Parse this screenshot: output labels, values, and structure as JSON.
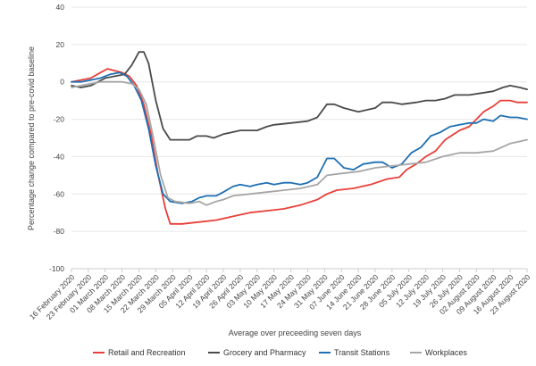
{
  "chart_data": {
    "type": "line",
    "xlabel": "Average over preceeding seven days",
    "ylabel": "Percentage change compared to pre-covid baseline",
    "ylim": [
      -100,
      40
    ],
    "yticks": [
      40,
      20,
      0,
      -20,
      -40,
      -60,
      -80,
      -100
    ],
    "grid": "horizontal",
    "legend_position": "bottom",
    "x_tick_labels": [
      "16 February 2020",
      "23 February 2020",
      "01 March 2020",
      "08 March 2020",
      "15 March 2020",
      "22 March 2020",
      "29 March 2020",
      "05 April 2020",
      "12 April 2020",
      "19 April 2020",
      "26 April 2020",
      "03 May 2020",
      "10 May 2020",
      "17 May 2020",
      "24 May 2020",
      "31 May 2020",
      "07 June 2020",
      "14 June 2020",
      "21 June 2020",
      "28 June 2020",
      "05 July 2020",
      "12 July 2020",
      "19 July 2020",
      "26 July 2020",
      "02 August 2020",
      "09 August 2020",
      "16 August 2020",
      "23 August 2020"
    ],
    "x_start": "2020-02-16",
    "x_end": "2020-08-23",
    "series": [
      {
        "name": "Retail and Recreation",
        "color": "#e8403a",
        "points": [
          [
            "2020-02-16",
            0
          ],
          [
            "2020-02-20",
            1
          ],
          [
            "2020-02-24",
            2
          ],
          [
            "2020-02-28",
            5
          ],
          [
            "2020-03-02",
            7
          ],
          [
            "2020-03-05",
            6
          ],
          [
            "2020-03-08",
            5
          ],
          [
            "2020-03-11",
            3
          ],
          [
            "2020-03-14",
            -2
          ],
          [
            "2020-03-17",
            -12
          ],
          [
            "2020-03-20",
            -28
          ],
          [
            "2020-03-23",
            -50
          ],
          [
            "2020-03-26",
            -68
          ],
          [
            "2020-03-28",
            -76
          ],
          [
            "2020-04-02",
            -76
          ],
          [
            "2020-04-09",
            -75
          ],
          [
            "2020-04-16",
            -74
          ],
          [
            "2020-04-23",
            -72
          ],
          [
            "2020-04-30",
            -70
          ],
          [
            "2020-05-07",
            -69
          ],
          [
            "2020-05-14",
            -68
          ],
          [
            "2020-05-21",
            -66
          ],
          [
            "2020-05-28",
            -63
          ],
          [
            "2020-06-01",
            -60
          ],
          [
            "2020-06-05",
            -58
          ],
          [
            "2020-06-12",
            -57
          ],
          [
            "2020-06-19",
            -55
          ],
          [
            "2020-06-26",
            -52
          ],
          [
            "2020-07-01",
            -51
          ],
          [
            "2020-07-04",
            -47
          ],
          [
            "2020-07-08",
            -44
          ],
          [
            "2020-07-12",
            -40
          ],
          [
            "2020-07-16",
            -37
          ],
          [
            "2020-07-20",
            -31
          ],
          [
            "2020-07-26",
            -26
          ],
          [
            "2020-07-30",
            -24
          ],
          [
            "2020-08-02",
            -20
          ],
          [
            "2020-08-05",
            -16
          ],
          [
            "2020-08-09",
            -13
          ],
          [
            "2020-08-12",
            -10
          ],
          [
            "2020-08-16",
            -10
          ],
          [
            "2020-08-19",
            -11
          ],
          [
            "2020-08-23",
            -11
          ]
        ]
      },
      {
        "name": "Grocery and Pharmacy",
        "color": "#4a4a4a",
        "points": [
          [
            "2020-02-16",
            -2
          ],
          [
            "2020-02-20",
            -3
          ],
          [
            "2020-02-24",
            -2
          ],
          [
            "2020-03-01",
            2
          ],
          [
            "2020-03-05",
            3
          ],
          [
            "2020-03-09",
            4
          ],
          [
            "2020-03-12",
            9
          ],
          [
            "2020-03-15",
            16
          ],
          [
            "2020-03-17",
            16
          ],
          [
            "2020-03-19",
            10
          ],
          [
            "2020-03-22",
            -10
          ],
          [
            "2020-03-25",
            -25
          ],
          [
            "2020-03-28",
            -31
          ],
          [
            "2020-04-01",
            -31
          ],
          [
            "2020-04-05",
            -31
          ],
          [
            "2020-04-08",
            -29
          ],
          [
            "2020-04-12",
            -29
          ],
          [
            "2020-04-15",
            -30
          ],
          [
            "2020-04-19",
            -28
          ],
          [
            "2020-04-26",
            -26
          ],
          [
            "2020-05-03",
            -26
          ],
          [
            "2020-05-07",
            -24
          ],
          [
            "2020-05-10",
            -23
          ],
          [
            "2020-05-17",
            -22
          ],
          [
            "2020-05-24",
            -21
          ],
          [
            "2020-05-28",
            -19
          ],
          [
            "2020-06-01",
            -12
          ],
          [
            "2020-06-04",
            -12
          ],
          [
            "2020-06-08",
            -14
          ],
          [
            "2020-06-14",
            -16
          ],
          [
            "2020-06-21",
            -14
          ],
          [
            "2020-06-24",
            -11
          ],
          [
            "2020-06-28",
            -11
          ],
          [
            "2020-07-02",
            -12
          ],
          [
            "2020-07-08",
            -11
          ],
          [
            "2020-07-12",
            -10
          ],
          [
            "2020-07-16",
            -10
          ],
          [
            "2020-07-20",
            -9
          ],
          [
            "2020-07-24",
            -7
          ],
          [
            "2020-07-30",
            -7
          ],
          [
            "2020-08-04",
            -6
          ],
          [
            "2020-08-09",
            -5
          ],
          [
            "2020-08-13",
            -3
          ],
          [
            "2020-08-16",
            -2
          ],
          [
            "2020-08-20",
            -3
          ],
          [
            "2020-08-23",
            -4
          ]
        ]
      },
      {
        "name": "Transit Stations",
        "color": "#1f6fb2",
        "points": [
          [
            "2020-02-16",
            0
          ],
          [
            "2020-02-20",
            0
          ],
          [
            "2020-02-24",
            1
          ],
          [
            "2020-02-28",
            2
          ],
          [
            "2020-03-03",
            4
          ],
          [
            "2020-03-07",
            5
          ],
          [
            "2020-03-10",
            3
          ],
          [
            "2020-03-13",
            -2
          ],
          [
            "2020-03-16",
            -10
          ],
          [
            "2020-03-19",
            -25
          ],
          [
            "2020-03-22",
            -45
          ],
          [
            "2020-03-25",
            -60
          ],
          [
            "2020-03-28",
            -64
          ],
          [
            "2020-04-02",
            -65
          ],
          [
            "2020-04-06",
            -64
          ],
          [
            "2020-04-09",
            -62
          ],
          [
            "2020-04-12",
            -61
          ],
          [
            "2020-04-16",
            -61
          ],
          [
            "2020-04-19",
            -59
          ],
          [
            "2020-04-23",
            -56
          ],
          [
            "2020-04-26",
            -55
          ],
          [
            "2020-04-30",
            -56
          ],
          [
            "2020-05-03",
            -55
          ],
          [
            "2020-05-07",
            -54
          ],
          [
            "2020-05-10",
            -55
          ],
          [
            "2020-05-14",
            -54
          ],
          [
            "2020-05-17",
            -54
          ],
          [
            "2020-05-21",
            -55
          ],
          [
            "2020-05-24",
            -54
          ],
          [
            "2020-05-28",
            -51
          ],
          [
            "2020-06-01",
            -41
          ],
          [
            "2020-06-04",
            -41
          ],
          [
            "2020-06-08",
            -46
          ],
          [
            "2020-06-12",
            -47
          ],
          [
            "2020-06-16",
            -44
          ],
          [
            "2020-06-21",
            -43
          ],
          [
            "2020-06-24",
            -43
          ],
          [
            "2020-06-28",
            -46
          ],
          [
            "2020-07-02",
            -44
          ],
          [
            "2020-07-06",
            -38
          ],
          [
            "2020-07-10",
            -35
          ],
          [
            "2020-07-14",
            -29
          ],
          [
            "2020-07-18",
            -27
          ],
          [
            "2020-07-22",
            -24
          ],
          [
            "2020-07-26",
            -23
          ],
          [
            "2020-07-30",
            -22
          ],
          [
            "2020-08-02",
            -22
          ],
          [
            "2020-08-05",
            -20
          ],
          [
            "2020-08-09",
            -21
          ],
          [
            "2020-08-12",
            -18
          ],
          [
            "2020-08-16",
            -19
          ],
          [
            "2020-08-19",
            -19
          ],
          [
            "2020-08-23",
            -20
          ]
        ]
      },
      {
        "name": "Workplaces",
        "color": "#a6a6a6",
        "points": [
          [
            "2020-02-16",
            -3
          ],
          [
            "2020-02-20",
            -2
          ],
          [
            "2020-02-24",
            -1
          ],
          [
            "2020-02-28",
            0
          ],
          [
            "2020-03-03",
            0
          ],
          [
            "2020-03-08",
            0
          ],
          [
            "2020-03-12",
            -1
          ],
          [
            "2020-03-15",
            -4
          ],
          [
            "2020-03-18",
            -12
          ],
          [
            "2020-03-21",
            -30
          ],
          [
            "2020-03-24",
            -50
          ],
          [
            "2020-03-27",
            -62
          ],
          [
            "2020-03-30",
            -64
          ],
          [
            "2020-04-05",
            -65
          ],
          [
            "2020-04-09",
            -64
          ],
          [
            "2020-04-12",
            -66
          ],
          [
            "2020-04-16",
            -64
          ],
          [
            "2020-04-19",
            -63
          ],
          [
            "2020-04-23",
            -61
          ],
          [
            "2020-04-30",
            -60
          ],
          [
            "2020-05-07",
            -59
          ],
          [
            "2020-05-14",
            -58
          ],
          [
            "2020-05-21",
            -57
          ],
          [
            "2020-05-28",
            -55
          ],
          [
            "2020-06-01",
            -50
          ],
          [
            "2020-06-07",
            -49
          ],
          [
            "2020-06-14",
            -48
          ],
          [
            "2020-06-21",
            -46
          ],
          [
            "2020-06-28",
            -45
          ],
          [
            "2020-07-05",
            -44
          ],
          [
            "2020-07-12",
            -43
          ],
          [
            "2020-07-19",
            -40
          ],
          [
            "2020-07-26",
            -38
          ],
          [
            "2020-08-02",
            -38
          ],
          [
            "2020-08-09",
            -37
          ],
          [
            "2020-08-16",
            -33
          ],
          [
            "2020-08-23",
            -31
          ]
        ]
      }
    ]
  }
}
